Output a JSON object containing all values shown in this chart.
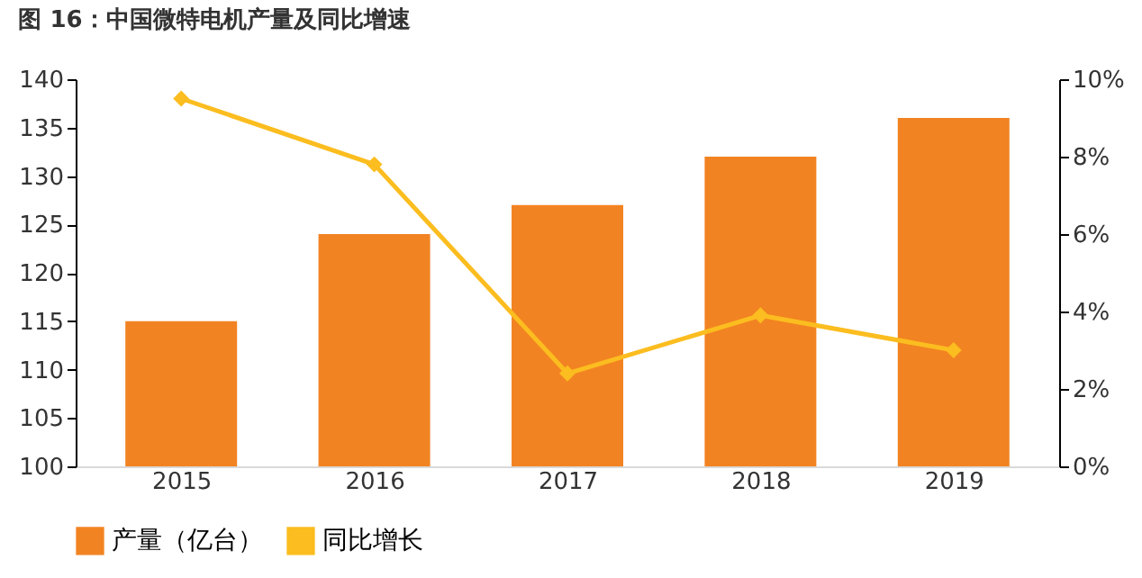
{
  "chart_data": {
    "type": "bar",
    "title": "图 16：中国微特电机产量及同比增速",
    "categories": [
      "2015",
      "2016",
      "2017",
      "2018",
      "2019"
    ],
    "series": [
      {
        "name": "产量（亿台）",
        "color": "#f28322",
        "values": [
          115,
          124,
          127,
          132,
          136
        ]
      },
      {
        "name": "同比增长",
        "type": "line",
        "axis": "y2",
        "color": "#fbbd1f",
        "marker": "diamond",
        "values": [
          9.5,
          7.8,
          2.4,
          3.9,
          3.0
        ]
      }
    ],
    "ylim": [
      100,
      140
    ],
    "yticks": [
      100,
      105,
      110,
      115,
      120,
      125,
      130,
      135,
      140
    ],
    "y2lim": [
      0,
      10
    ],
    "y2ticks": [
      {
        "value": 0,
        "label": "0%"
      },
      {
        "value": 2,
        "label": "2%"
      },
      {
        "value": 4,
        "label": "4%"
      },
      {
        "value": 6,
        "label": "6%"
      },
      {
        "value": 8,
        "label": "8%"
      },
      {
        "value": 10,
        "label": "10%"
      }
    ],
    "grid": false,
    "legend": "bottom"
  }
}
